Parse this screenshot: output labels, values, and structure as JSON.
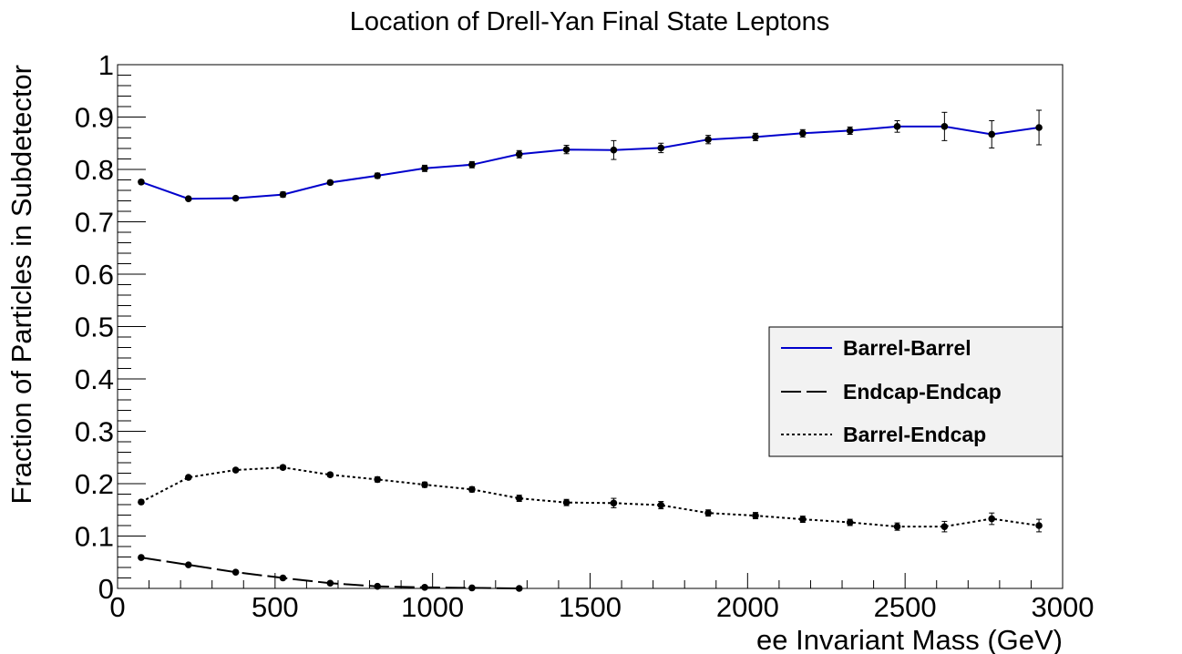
{
  "chart_data": {
    "type": "line",
    "title": "Location of Drell-Yan Final State Leptons",
    "xlabel": "ee Invariant Mass (GeV)",
    "ylabel": "Fraction of Particles in Subdetector",
    "xlim": [
      0,
      3000
    ],
    "ylim": [
      0,
      1
    ],
    "xticks": [
      "0",
      "500",
      "1000",
      "1500",
      "2000",
      "2500",
      "3000"
    ],
    "yticks": [
      "0",
      "0.1",
      "0.2",
      "0.3",
      "0.4",
      "0.5",
      "0.6",
      "0.7",
      "0.8",
      "0.9",
      "1"
    ],
    "grid": false,
    "legend_position": "right",
    "series": [
      {
        "name": "Barrel-Barrel",
        "color": "#0000cc",
        "style": "solid",
        "x": [
          75,
          225,
          375,
          525,
          675,
          825,
          975,
          1125,
          1275,
          1425,
          1575,
          1725,
          1875,
          2025,
          2175,
          2325,
          2475,
          2625,
          2775,
          2925
        ],
        "y": [
          0.776,
          0.744,
          0.745,
          0.752,
          0.775,
          0.788,
          0.802,
          0.809,
          0.829,
          0.838,
          0.837,
          0.841,
          0.857,
          0.862,
          0.869,
          0.874,
          0.882,
          0.882,
          0.867,
          0.88
        ],
        "err": [
          0.004,
          0.003,
          0.003,
          0.005,
          0.004,
          0.005,
          0.006,
          0.006,
          0.007,
          0.008,
          0.018,
          0.009,
          0.008,
          0.007,
          0.007,
          0.007,
          0.011,
          0.027,
          0.026,
          0.033
        ]
      },
      {
        "name": "Endcap-Endcap",
        "color": "#000000",
        "style": "dashed",
        "x": [
          75,
          225,
          375,
          525,
          675,
          825,
          975,
          1125,
          1275
        ],
        "y": [
          0.059,
          0.045,
          0.031,
          0.02,
          0.01,
          0.004,
          0.002,
          0.001,
          0.0
        ],
        "err": [
          0.002,
          0.002,
          0.002,
          0.002,
          0.001,
          0.001,
          0.001,
          0.001,
          0.0
        ]
      },
      {
        "name": "Barrel-Endcap",
        "color": "#000000",
        "style": "dotted",
        "x": [
          75,
          225,
          375,
          525,
          675,
          825,
          975,
          1125,
          1275,
          1425,
          1575,
          1725,
          1875,
          2025,
          2175,
          2325,
          2475,
          2625,
          2775,
          2925
        ],
        "y": [
          0.165,
          0.212,
          0.226,
          0.231,
          0.217,
          0.208,
          0.198,
          0.189,
          0.172,
          0.164,
          0.163,
          0.159,
          0.144,
          0.139,
          0.132,
          0.126,
          0.118,
          0.118,
          0.133,
          0.12
        ],
        "err": [
          0.004,
          0.003,
          0.003,
          0.004,
          0.004,
          0.005,
          0.005,
          0.005,
          0.006,
          0.006,
          0.009,
          0.007,
          0.006,
          0.006,
          0.006,
          0.006,
          0.007,
          0.01,
          0.011,
          0.012
        ]
      }
    ]
  }
}
